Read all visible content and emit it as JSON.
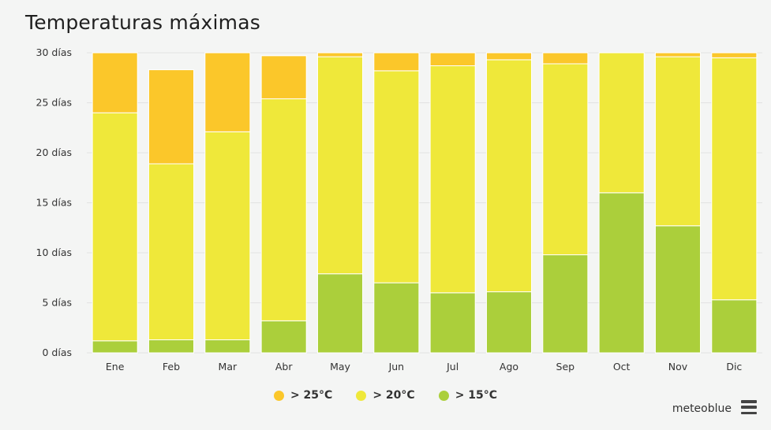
{
  "title": "Temperaturas máximas",
  "brand": "meteoblue",
  "colors": {
    "gt25": "#fbc72a",
    "gt20": "#efe83a",
    "gt15": "#abcf3b",
    "grid": "#e2e2e2",
    "background": "#f4f5f4"
  },
  "legend": [
    {
      "label": "> 25°C",
      "color": "#fbc72a"
    },
    {
      "label": "> 20°C",
      "color": "#efe83a"
    },
    {
      "label": "> 15°C",
      "color": "#abcf3b"
    }
  ],
  "chart_data": {
    "type": "bar",
    "stacked": true,
    "title": "Temperaturas máximas",
    "categories": [
      "Ene",
      "Feb",
      "Mar",
      "Abr",
      "May",
      "Jun",
      "Jul",
      "Ago",
      "Sep",
      "Oct",
      "Nov",
      "Dic"
    ],
    "series": [
      {
        "name": "> 15°C",
        "color": "#abcf3b",
        "values": [
          1.2,
          1.3,
          1.3,
          3.2,
          7.9,
          7.0,
          6.0,
          6.1,
          9.8,
          16.0,
          12.7,
          5.3
        ]
      },
      {
        "name": "> 20°C",
        "color": "#efe83a",
        "values": [
          22.8,
          17.6,
          20.8,
          22.2,
          21.7,
          21.2,
          22.7,
          23.2,
          19.1,
          14.0,
          16.9,
          24.2
        ]
      },
      {
        "name": "> 25°C",
        "color": "#fbc72a",
        "values": [
          6.0,
          9.4,
          7.9,
          4.3,
          0.4,
          1.8,
          1.3,
          0.7,
          1.1,
          0.0,
          0.4,
          0.5
        ]
      }
    ],
    "yticks": [
      "0 días",
      "5 días",
      "10 días",
      "15 días",
      "20 días",
      "25 días",
      "30 días"
    ],
    "ytick_values": [
      0,
      5,
      10,
      15,
      20,
      25,
      30
    ],
    "ylim": [
      0,
      30
    ],
    "grid": true,
    "legend_position": "bottom"
  }
}
